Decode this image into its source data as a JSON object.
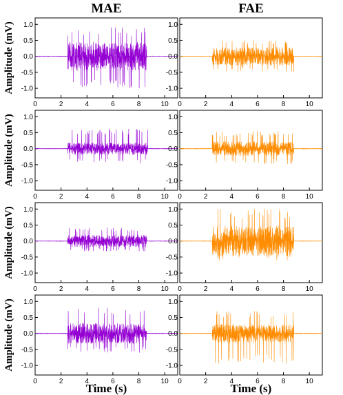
{
  "chart_data": [
    {
      "type": "line",
      "title": "MAE",
      "ylabel": "Amplitude (mV)",
      "xlabel": "",
      "xlim": [
        0,
        11
      ],
      "ylim": [
        -1.3,
        1.2
      ],
      "x_ticks": [
        0,
        2,
        4,
        6,
        8,
        10
      ],
      "y_ticks": [
        -1.0,
        -0.5,
        0.0,
        0.5,
        1.0
      ],
      "signal": {
        "start": 2.5,
        "end": 8.6,
        "color": "#9400D3",
        "peak_pos": 0.9,
        "peak_neg": -1.0,
        "typical": 0.28
      }
    },
    {
      "type": "line",
      "title": "FAE",
      "ylabel": "",
      "xlabel": "",
      "xlim": [
        0,
        11
      ],
      "ylim": [
        -1.3,
        1.2
      ],
      "x_ticks": [
        0,
        2,
        4,
        6,
        8,
        10
      ],
      "y_ticks": [
        -1.0,
        -0.5,
        0.0,
        0.5,
        1.0
      ],
      "signal": {
        "start": 2.5,
        "end": 8.8,
        "color": "#FF8C00",
        "peak_pos": 0.5,
        "peak_neg": -0.5,
        "typical": 0.18
      }
    },
    {
      "type": "line",
      "title": "",
      "ylabel": "Amplitude (mV)",
      "xlabel": "",
      "xlim": [
        0,
        11
      ],
      "ylim": [
        -1.3,
        1.2
      ],
      "x_ticks": [
        0,
        2,
        4,
        6,
        8,
        10
      ],
      "y_ticks": [
        -1.0,
        -0.5,
        0.0,
        0.5,
        1.0
      ],
      "signal": {
        "start": 2.5,
        "end": 8.7,
        "color": "#9400D3",
        "peak_pos": 0.62,
        "peak_neg": -0.45,
        "typical": 0.12
      }
    },
    {
      "type": "line",
      "title": "",
      "ylabel": "",
      "xlabel": "",
      "xlim": [
        0,
        11
      ],
      "ylim": [
        -1.3,
        1.2
      ],
      "x_ticks": [
        0,
        2,
        4,
        6,
        8,
        10
      ],
      "y_ticks": [
        -1.0,
        -0.5,
        0.0,
        0.5,
        1.0
      ],
      "signal": {
        "start": 2.5,
        "end": 8.8,
        "color": "#FF8C00",
        "peak_pos": 0.55,
        "peak_neg": -0.48,
        "typical": 0.14
      }
    },
    {
      "type": "line",
      "title": "",
      "ylabel": "Amplitude (mV)",
      "xlabel": "",
      "xlim": [
        0,
        11
      ],
      "ylim": [
        -1.3,
        1.2
      ],
      "x_ticks": [
        0,
        2,
        4,
        6,
        8,
        10
      ],
      "y_ticks": [
        -1.0,
        -0.5,
        0.0,
        0.5,
        1.0
      ],
      "signal": {
        "start": 2.5,
        "end": 8.6,
        "color": "#9400D3",
        "peak_pos": 0.42,
        "peak_neg": -0.32,
        "typical": 0.12
      }
    },
    {
      "type": "line",
      "title": "",
      "ylabel": "",
      "xlabel": "",
      "xlim": [
        0,
        11
      ],
      "ylim": [
        -1.3,
        1.2
      ],
      "x_ticks": [
        0,
        2,
        4,
        6,
        8,
        10
      ],
      "y_ticks": [
        -1.0,
        -0.5,
        0.0,
        0.5,
        1.0
      ],
      "signal": {
        "start": 2.5,
        "end": 8.8,
        "color": "#FF8C00",
        "peak_pos": 1.0,
        "peak_neg": -0.6,
        "typical": 0.3
      }
    },
    {
      "type": "line",
      "title": "",
      "ylabel": "Amplitude (mV)",
      "xlabel": "Time (s)",
      "xlim": [
        0,
        11
      ],
      "ylim": [
        -1.3,
        1.2
      ],
      "x_ticks": [
        0,
        2,
        4,
        6,
        8,
        10
      ],
      "y_ticks": [
        -1.0,
        -0.5,
        0.0,
        0.5,
        1.0
      ],
      "signal": {
        "start": 2.5,
        "end": 8.6,
        "color": "#9400D3",
        "peak_pos": 0.8,
        "peak_neg": -0.6,
        "typical": 0.2
      }
    },
    {
      "type": "line",
      "title": "",
      "ylabel": "",
      "xlabel": "Time (s)",
      "xlim": [
        0,
        11
      ],
      "ylim": [
        -1.3,
        1.2
      ],
      "x_ticks": [
        0,
        2,
        4,
        6,
        8,
        10
      ],
      "y_ticks": [
        -1.0,
        -0.5,
        0.0,
        0.5,
        1.0
      ],
      "signal": {
        "start": 2.5,
        "end": 8.8,
        "color": "#FF8C00",
        "peak_pos": 0.7,
        "peak_neg": -0.95,
        "typical": 0.18
      }
    }
  ]
}
